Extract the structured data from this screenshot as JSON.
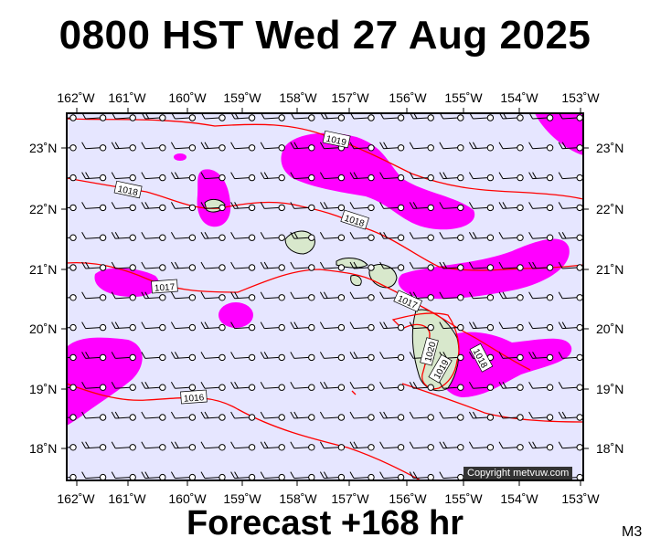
{
  "title": "0800 HST Wed 27 Aug 2025",
  "footer": "Forecast +168 hr",
  "model_tag": "M3",
  "copyright": "Copyright metvuw.com",
  "lon_labels": [
    "162˚W",
    "161˚W",
    "160˚W",
    "159˚W",
    "158˚W",
    "157˚W",
    "156˚W",
    "155˚W",
    "154˚W",
    "153˚W"
  ],
  "lat_labels": [
    "23˚N",
    "22˚N",
    "21˚N",
    "20˚N",
    "19˚N",
    "18˚N"
  ],
  "isobar_labels": [
    "1019",
    "1018",
    "1018",
    "1017",
    "1017",
    "1016",
    "1020",
    "1019",
    "1018"
  ],
  "colors": {
    "ocean": "#e6e6ff",
    "precip": "#ff00ff",
    "isobar": "#ff0000",
    "land": "#d8e8cc"
  }
}
